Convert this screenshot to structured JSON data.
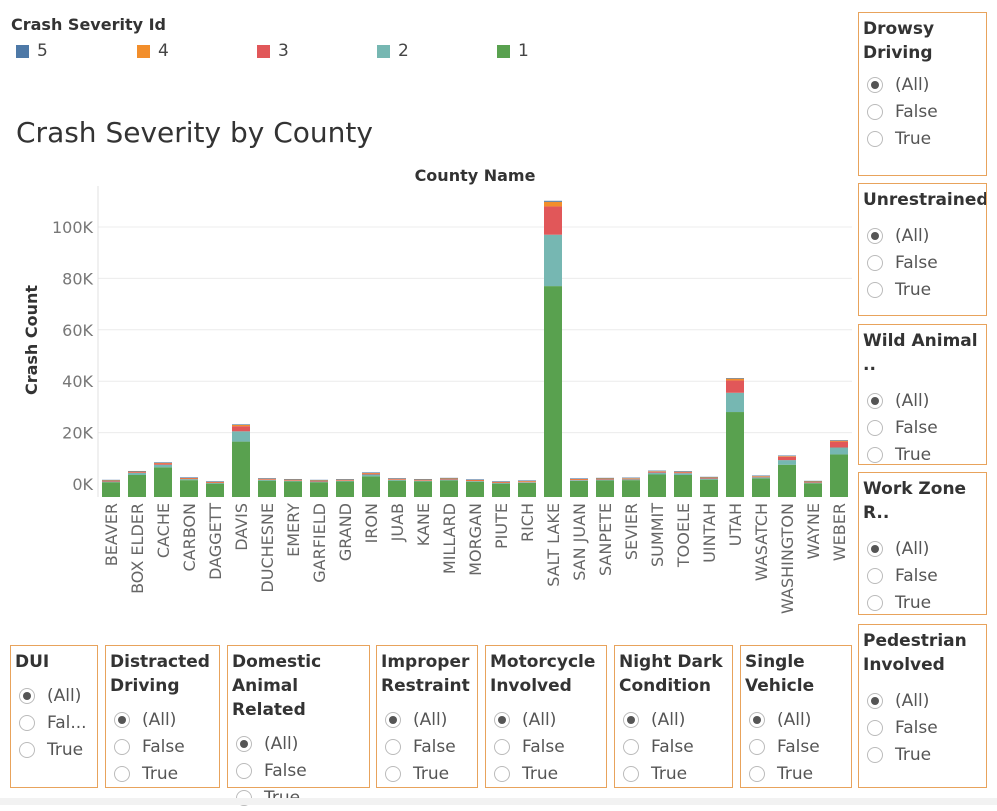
{
  "legend": {
    "title": "Crash Severity Id",
    "items": [
      {
        "label": "5",
        "color": "#4e79a7"
      },
      {
        "label": "4",
        "color": "#f28e2b"
      },
      {
        "label": "3",
        "color": "#e15759"
      },
      {
        "label": "2",
        "color": "#76b7b2"
      },
      {
        "label": "1",
        "color": "#59a14f"
      }
    ]
  },
  "chart_title": "Crash Severity by County",
  "chart_data": {
    "type": "bar",
    "stacked": true,
    "title": "Crash Severity by County",
    "xlabel": "County Name",
    "ylabel": "Crash Count",
    "ylim": [
      0,
      110000
    ],
    "yticks": [
      0,
      20000,
      40000,
      60000,
      80000,
      100000
    ],
    "ytick_labels": [
      "0K",
      "20K",
      "40K",
      "60K",
      "80K",
      "100K"
    ],
    "grid": true,
    "categories": [
      "BEAVER",
      "BOX ELDER",
      "CACHE",
      "CARBON",
      "DAGGETT",
      "DAVIS",
      "DUCHESNE",
      "EMERY",
      "GARFIELD",
      "GRAND",
      "IRON",
      "JUAB",
      "KANE",
      "MILLARD",
      "MORGAN",
      "PIUTE",
      "RICH",
      "SALT LAKE",
      "SAN JUAN",
      "SANPETE",
      "SEVIER",
      "SUMMIT",
      "TOOELE",
      "UINTAH",
      "UTAH",
      "WASATCH",
      "WASHINGTON",
      "WAYNE",
      "WEBER"
    ],
    "series": [
      {
        "name": "1",
        "color": "#59a14f",
        "values": [
          700,
          3500,
          6500,
          1500,
          150,
          16500,
          1300,
          1000,
          700,
          1000,
          3000,
          1300,
          1000,
          1400,
          900,
          150,
          450,
          77000,
          1200,
          1400,
          1500,
          3700,
          3500,
          1700,
          28000,
          2200,
          7500,
          300,
          11500
        ]
      },
      {
        "name": "2",
        "color": "#76b7b2",
        "values": [
          150,
          800,
          1000,
          400,
          30,
          4000,
          300,
          250,
          150,
          200,
          700,
          300,
          250,
          300,
          200,
          30,
          100,
          20000,
          300,
          300,
          300,
          700,
          700,
          400,
          7500,
          400,
          1800,
          50,
          2700
        ]
      },
      {
        "name": "3",
        "color": "#e15759",
        "values": [
          80,
          300,
          500,
          200,
          20,
          2000,
          150,
          120,
          80,
          100,
          350,
          150,
          120,
          150,
          100,
          20,
          50,
          11000,
          150,
          150,
          150,
          350,
          350,
          200,
          4800,
          200,
          1300,
          30,
          2300
        ]
      },
      {
        "name": "4",
        "color": "#f28e2b",
        "values": [
          30,
          100,
          150,
          60,
          10,
          500,
          50,
          40,
          30,
          30,
          100,
          50,
          40,
          50,
          30,
          10,
          20,
          1800,
          50,
          50,
          50,
          100,
          100,
          60,
          700,
          60,
          250,
          10,
          350
        ]
      },
      {
        "name": "5",
        "color": "#4e79a7",
        "values": [
          20,
          50,
          80,
          40,
          5,
          150,
          30,
          20,
          20,
          20,
          50,
          30,
          20,
          30,
          20,
          5,
          10,
          400,
          30,
          30,
          30,
          50,
          50,
          40,
          200,
          30,
          80,
          10,
          100
        ]
      }
    ]
  },
  "filters": {
    "drowsy": {
      "title": "Drowsy\nDriving",
      "opts": [
        "(All)",
        "False",
        "True"
      ]
    },
    "unrestrained": {
      "title": "Unrestrained",
      "opts": [
        "(All)",
        "False",
        "True"
      ]
    },
    "wild_animal": {
      "title": "Wild Animal ..",
      "opts": [
        "(All)",
        "False",
        "True"
      ]
    },
    "work_zone": {
      "title": "Work Zone R..",
      "opts": [
        "(All)",
        "False",
        "True"
      ]
    },
    "pedestrian": {
      "title": "Pedestrian\nInvolved",
      "opts": [
        "(All)",
        "False",
        "True"
      ]
    },
    "dui": {
      "title": "DUI",
      "opts": [
        "(All)",
        "Fal...",
        "True"
      ]
    },
    "distracted": {
      "title": "Distracted\nDriving",
      "opts": [
        "(All)",
        "False",
        "True"
      ]
    },
    "domestic": {
      "title": "Domestic\nAnimal Related",
      "opts": [
        "(All)",
        "False",
        "True"
      ]
    },
    "improper": {
      "title": "Improper\nRestraint",
      "opts": [
        "(All)",
        "False",
        "True"
      ]
    },
    "motorcycle": {
      "title": "Motorcycle\nInvolved",
      "opts": [
        "(All)",
        "False",
        "True"
      ]
    },
    "night_dark": {
      "title": "Night Dark\nCondition",
      "opts": [
        "(All)",
        "False",
        "True"
      ]
    },
    "single_vehicle": {
      "title": "Single\nVehicle",
      "opts": [
        "(All)",
        "False",
        "True"
      ]
    }
  }
}
